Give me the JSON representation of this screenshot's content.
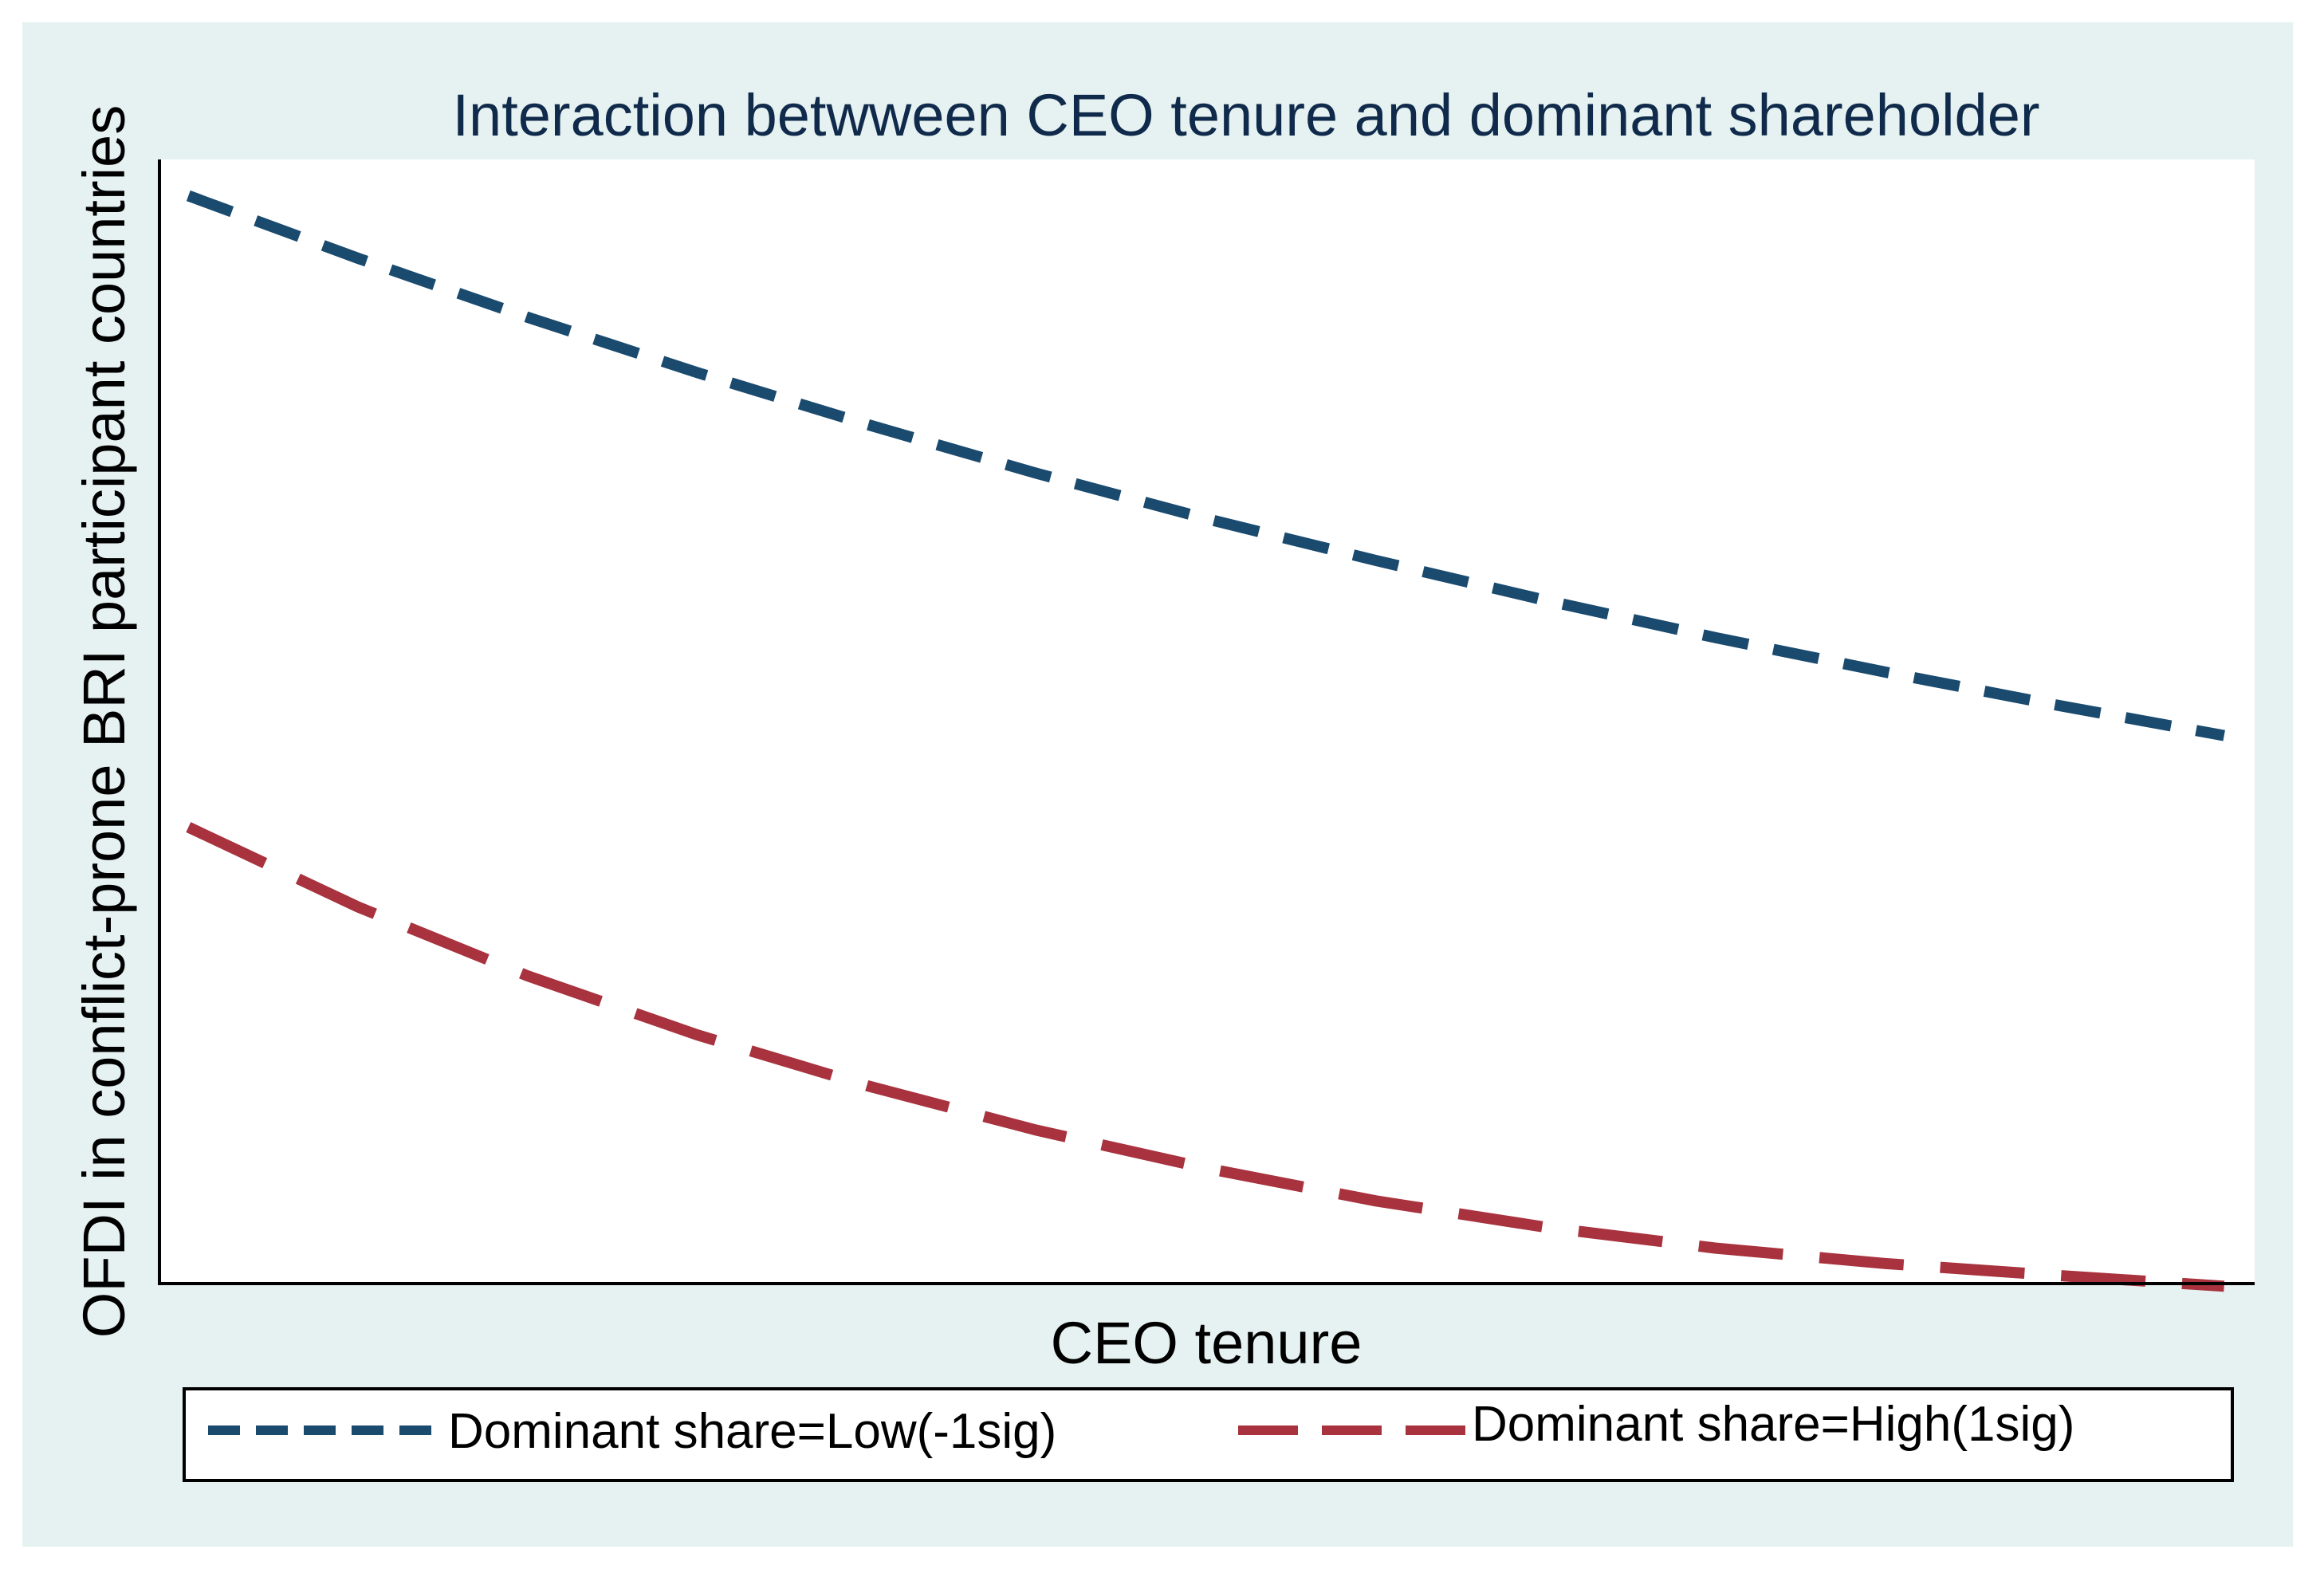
{
  "chart_data": {
    "type": "line",
    "title": "Interaction betwween CEO tenure and dominant shareholder",
    "xlabel": "CEO tenure",
    "ylabel": "OFDI in conflict-prone BRI participant countries",
    "x": [
      0,
      1,
      2,
      3,
      4,
      5,
      6,
      7,
      8,
      9,
      10,
      11,
      12
    ],
    "xlim": [
      -0.18,
      12.18
    ],
    "ylim": [
      -0.12,
      1.12
    ],
    "grid": false,
    "legend_position": "bottom",
    "series": [
      {
        "name": "Dominant share=Low(-1sig)",
        "color": "#1a4a6e",
        "dash": "short",
        "values": [
          1.08,
          1.011,
          0.946,
          0.885,
          0.828,
          0.774,
          0.724,
          0.678,
          0.634,
          0.593,
          0.555,
          0.519,
          0.485
        ]
      },
      {
        "name": "Dominant share=High(1sig)",
        "color": "#a8323e",
        "dash": "long",
        "values": [
          0.384,
          0.296,
          0.22,
          0.155,
          0.099,
          0.05,
          0.008,
          -0.028,
          -0.057,
          -0.08,
          -0.097,
          -0.11,
          -0.122
        ]
      }
    ]
  }
}
